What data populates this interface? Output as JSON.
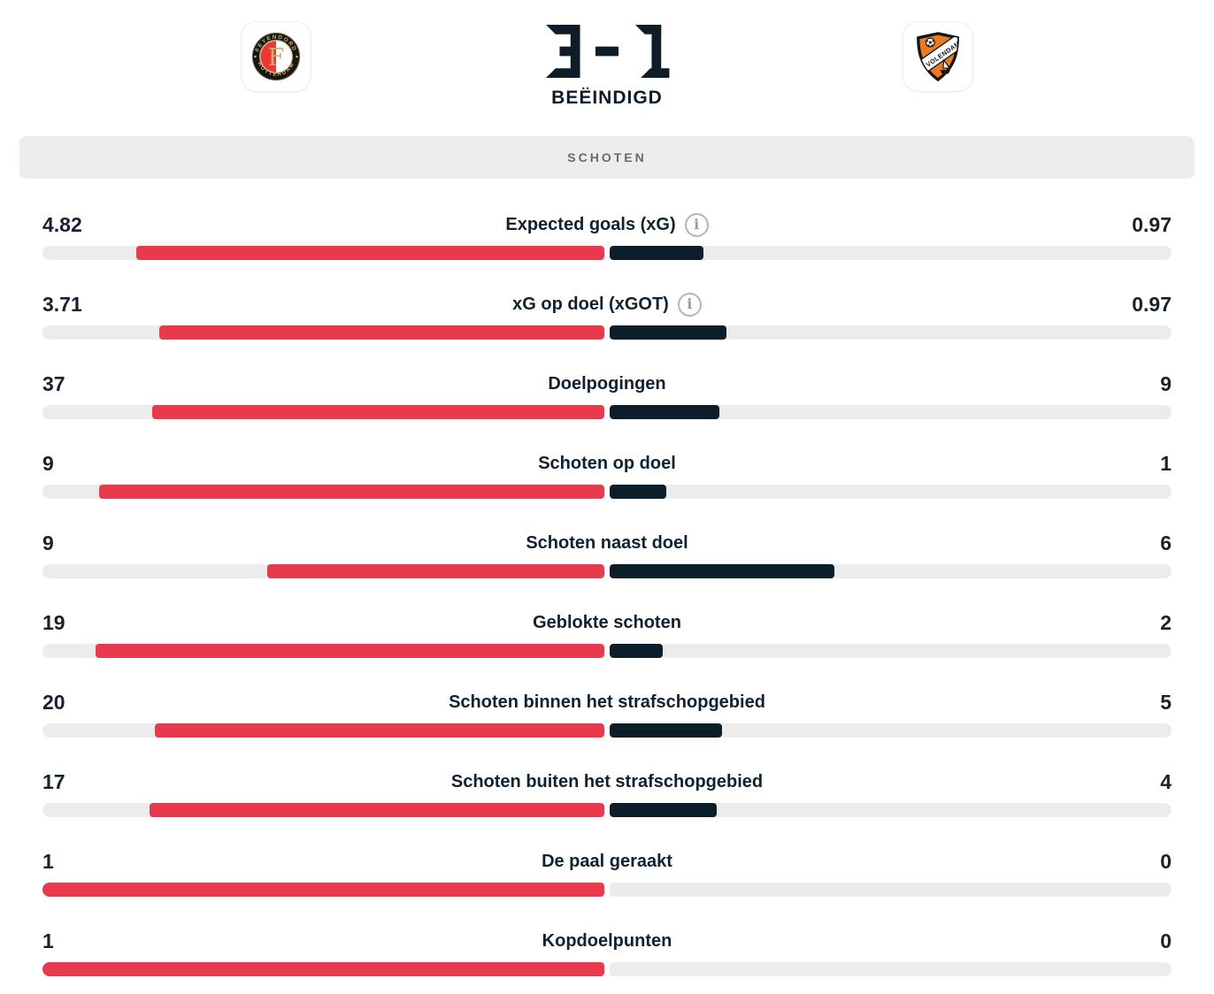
{
  "header": {
    "home_team": "Feyenoord",
    "away_team": "FC Volendam",
    "score_home": "3",
    "score_away": "1",
    "score_label": "3 - 1",
    "status": "BEËINDIGD",
    "home_logo": {
      "ring_top": "FEYENOORD",
      "ring_bottom": "ROTTERDAM",
      "letter": "F"
    },
    "away_logo": {
      "band_text": "FC VOLENDAM"
    }
  },
  "section": {
    "title": "SCHOTEN"
  },
  "colors": {
    "home_bar": "#e9394d",
    "away_bar": "#0b1e2a",
    "track": "#ececec",
    "navy_text": "#0e1c2a"
  },
  "stats": [
    {
      "label": "Expected goals (xG)",
      "home": "4.82",
      "away": "0.97",
      "home_val": 4.82,
      "away_val": 0.97,
      "info": true
    },
    {
      "label": "xG op doel (xGOT)",
      "home": "3.71",
      "away": "0.97",
      "home_val": 3.71,
      "away_val": 0.97,
      "info": true
    },
    {
      "label": "Doelpogingen",
      "home": "37",
      "away": "9",
      "home_val": 37,
      "away_val": 9,
      "info": false
    },
    {
      "label": "Schoten op doel",
      "home": "9",
      "away": "1",
      "home_val": 9,
      "away_val": 1,
      "info": false
    },
    {
      "label": "Schoten naast doel",
      "home": "9",
      "away": "6",
      "home_val": 9,
      "away_val": 6,
      "info": false
    },
    {
      "label": "Geblokte schoten",
      "home": "19",
      "away": "2",
      "home_val": 19,
      "away_val": 2,
      "info": false
    },
    {
      "label": "Schoten binnen het strafschopgebied",
      "home": "20",
      "away": "5",
      "home_val": 20,
      "away_val": 5,
      "info": false
    },
    {
      "label": "Schoten buiten het strafschopgebied",
      "home": "17",
      "away": "4",
      "home_val": 17,
      "away_val": 4,
      "info": false
    },
    {
      "label": "De paal geraakt",
      "home": "1",
      "away": "0",
      "home_val": 1,
      "away_val": 0,
      "info": false
    },
    {
      "label": "Kopdoelpunten",
      "home": "1",
      "away": "0",
      "home_val": 1,
      "away_val": 0,
      "info": false
    }
  ]
}
